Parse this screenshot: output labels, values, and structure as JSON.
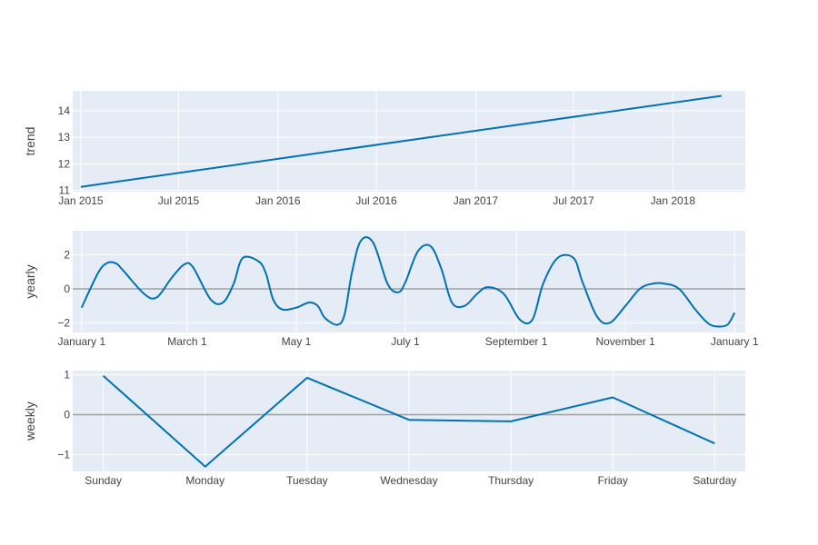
{
  "colors": {
    "plot_bg": "#e5ecf6",
    "grid": "#ffffff",
    "line": "#0072b2",
    "zeroline": "#a0a0a0",
    "text": "#444444"
  },
  "chart_data": [
    {
      "type": "line",
      "ylabel": "trend",
      "ylim": [
        10.95,
        14.75
      ],
      "x_start": "2015-01-01",
      "x_end": "2018-04-01",
      "x_range": [
        "2014-12-17",
        "2018-05-15"
      ],
      "series": [
        {
          "x": [
            "2015-01-01",
            "2018-04-01"
          ],
          "y": [
            11.13,
            14.56
          ]
        }
      ],
      "xticks": [
        {
          "label": "Jan 2015",
          "x": "2015-01-01"
        },
        {
          "label": "Jul 2015",
          "x": "2015-07-01"
        },
        {
          "label": "Jan 2016",
          "x": "2016-01-01"
        },
        {
          "label": "Jul 2016",
          "x": "2016-07-01"
        },
        {
          "label": "Jan 2017",
          "x": "2017-01-01"
        },
        {
          "label": "Jul 2017",
          "x": "2017-07-01"
        },
        {
          "label": "Jan 2018",
          "x": "2018-01-01"
        }
      ],
      "yticks": [
        11,
        12,
        13,
        14
      ],
      "grid": true
    },
    {
      "type": "line",
      "ylabel": "yearly",
      "ylim": [
        -2.55,
        3.4
      ],
      "zero_line": true,
      "x_range": [
        "2017-12-27",
        "2019-01-07"
      ],
      "series": [
        {
          "x": [
            "2018-01-01",
            "2018-01-10",
            "2018-01-15",
            "2018-01-20",
            "2018-01-24",
            "2018-02-05",
            "2018-02-12",
            "2018-02-20",
            "2018-02-27",
            "2018-03-04",
            "2018-03-14",
            "2018-03-21",
            "2018-03-27",
            "2018-04-01",
            "2018-04-10",
            "2018-04-14",
            "2018-04-18",
            "2018-04-23",
            "2018-05-01",
            "2018-05-08",
            "2018-05-13",
            "2018-05-17",
            "2018-05-24",
            "2018-05-28",
            "2018-06-01",
            "2018-06-06",
            "2018-06-13",
            "2018-06-21",
            "2018-06-27",
            "2018-07-01",
            "2018-07-08",
            "2018-07-15",
            "2018-07-21",
            "2018-07-27",
            "2018-08-03",
            "2018-08-10",
            "2018-08-16",
            "2018-08-25",
            "2018-09-03",
            "2018-09-10",
            "2018-09-16",
            "2018-09-24",
            "2018-10-03",
            "2018-10-08",
            "2018-10-16",
            "2018-10-23",
            "2018-11-01",
            "2018-11-09",
            "2018-11-16",
            "2018-11-23",
            "2018-12-01",
            "2018-12-10",
            "2018-12-17",
            "2018-12-22",
            "2018-12-28",
            "2019-01-01"
          ],
          "y": [
            -1.1,
            0.9,
            1.5,
            1.5,
            1.1,
            -0.3,
            -0.5,
            0.6,
            1.4,
            1.3,
            -0.6,
            -0.8,
            0.3,
            1.8,
            1.6,
            0.9,
            -0.6,
            -1.2,
            -1.1,
            -0.8,
            -1.0,
            -1.7,
            -2.1,
            -1.5,
            0.9,
            2.8,
            2.7,
            0.3,
            -0.2,
            0.4,
            2.2,
            2.5,
            1.2,
            -0.8,
            -1.0,
            -0.3,
            0.1,
            -0.3,
            -1.8,
            -1.8,
            0.3,
            1.8,
            1.8,
            0.4,
            -1.6,
            -2.0,
            -1.0,
            0.0,
            0.3,
            0.3,
            0.0,
            -1.2,
            -2.0,
            -2.2,
            -2.1,
            -1.4
          ]
        }
      ],
      "xticks": [
        {
          "label": "January  1",
          "x": "2018-01-01"
        },
        {
          "label": "March  1",
          "x": "2018-03-01"
        },
        {
          "label": "May  1",
          "x": "2018-05-01"
        },
        {
          "label": "July  1",
          "x": "2018-07-01"
        },
        {
          "label": "September  1",
          "x": "2018-09-01"
        },
        {
          "label": "November  1",
          "x": "2018-11-01"
        },
        {
          "label": "January  1",
          "x": "2019-01-01"
        }
      ],
      "yticks": [
        -2,
        0,
        2
      ],
      "grid": true
    },
    {
      "type": "line",
      "ylabel": "weekly",
      "ylim": [
        -1.42,
        1.1
      ],
      "zero_line": true,
      "x_range": [
        -0.3,
        6.3
      ],
      "categories": [
        "Sunday",
        "Monday",
        "Tuesday",
        "Wednesday",
        "Thursday",
        "Friday",
        "Saturday"
      ],
      "series": [
        {
          "values": [
            0.97,
            -1.3,
            0.92,
            -0.13,
            -0.17,
            0.43,
            -0.72
          ]
        }
      ],
      "yticks": [
        -1,
        0,
        1
      ],
      "grid": true
    }
  ]
}
